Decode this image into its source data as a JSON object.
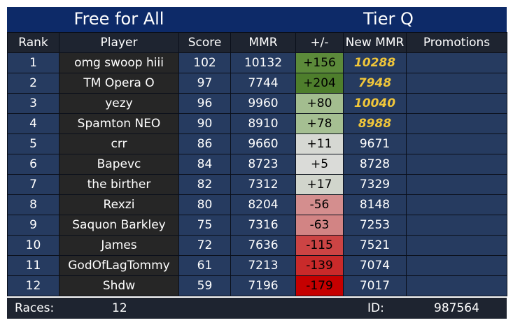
{
  "header": {
    "mode": "Free for All",
    "tier": "Tier Q"
  },
  "columns": [
    "Rank",
    "Player",
    "Score",
    "MMR",
    "+/-",
    "New MMR",
    "Promotions"
  ],
  "rows": [
    {
      "rank": "1",
      "player": "omg swoop hiii",
      "score": "102",
      "mmr": "10132",
      "delta": "+156",
      "new_mmr": "10288",
      "promotion": "",
      "delta_color": "#5c8a3a",
      "new_mmr_highlight": true
    },
    {
      "rank": "2",
      "player": "TM Opera O",
      "score": "97",
      "mmr": "7744",
      "delta": "+204",
      "new_mmr": "7948",
      "promotion": "",
      "delta_color": "#4e7e2c",
      "new_mmr_highlight": true
    },
    {
      "rank": "3",
      "player": "yezy",
      "score": "96",
      "mmr": "9960",
      "delta": "+80",
      "new_mmr": "10040",
      "promotion": "",
      "delta_color": "#a3bd8f",
      "new_mmr_highlight": true
    },
    {
      "rank": "4",
      "player": "Spamton NEO",
      "score": "90",
      "mmr": "8910",
      "delta": "+78",
      "new_mmr": "8988",
      "promotion": "",
      "delta_color": "#a5bf92",
      "new_mmr_highlight": true
    },
    {
      "rank": "5",
      "player": "crr",
      "score": "86",
      "mmr": "9660",
      "delta": "+11",
      "new_mmr": "9671",
      "promotion": "",
      "delta_color": "#d6d8d3",
      "new_mmr_highlight": false
    },
    {
      "rank": "6",
      "player": "Bapevc",
      "score": "84",
      "mmr": "8723",
      "delta": "+5",
      "new_mmr": "8728",
      "promotion": "",
      "delta_color": "#dadbd8",
      "new_mmr_highlight": false
    },
    {
      "rank": "7",
      "player": "the birther",
      "score": "82",
      "mmr": "7312",
      "delta": "+17",
      "new_mmr": "7329",
      "promotion": "",
      "delta_color": "#d1d5cc",
      "new_mmr_highlight": false
    },
    {
      "rank": "8",
      "player": "Rexzi",
      "score": "80",
      "mmr": "8204",
      "delta": "-56",
      "new_mmr": "8148",
      "promotion": "",
      "delta_color": "#d48e8e",
      "new_mmr_highlight": false
    },
    {
      "rank": "9",
      "player": "Saquon Barkley",
      "score": "75",
      "mmr": "7316",
      "delta": "-63",
      "new_mmr": "7253",
      "promotion": "",
      "delta_color": "#d28484",
      "new_mmr_highlight": false
    },
    {
      "rank": "10",
      "player": "James",
      "score": "72",
      "mmr": "7636",
      "delta": "-115",
      "new_mmr": "7521",
      "promotion": "",
      "delta_color": "#cc4444",
      "new_mmr_highlight": false
    },
    {
      "rank": "11",
      "player": "GodOfLagTommy",
      "score": "61",
      "mmr": "7213",
      "delta": "-139",
      "new_mmr": "7074",
      "promotion": "",
      "delta_color": "#c92a2a",
      "new_mmr_highlight": false
    },
    {
      "rank": "12",
      "player": "Shdw",
      "score": "59",
      "mmr": "7196",
      "delta": "-179",
      "new_mmr": "7017",
      "promotion": "",
      "delta_color": "#c50000",
      "new_mmr_highlight": false
    }
  ],
  "footer": {
    "races_label": "Races:",
    "races_value": "12",
    "id_label": "ID:",
    "id_value": "987564"
  }
}
